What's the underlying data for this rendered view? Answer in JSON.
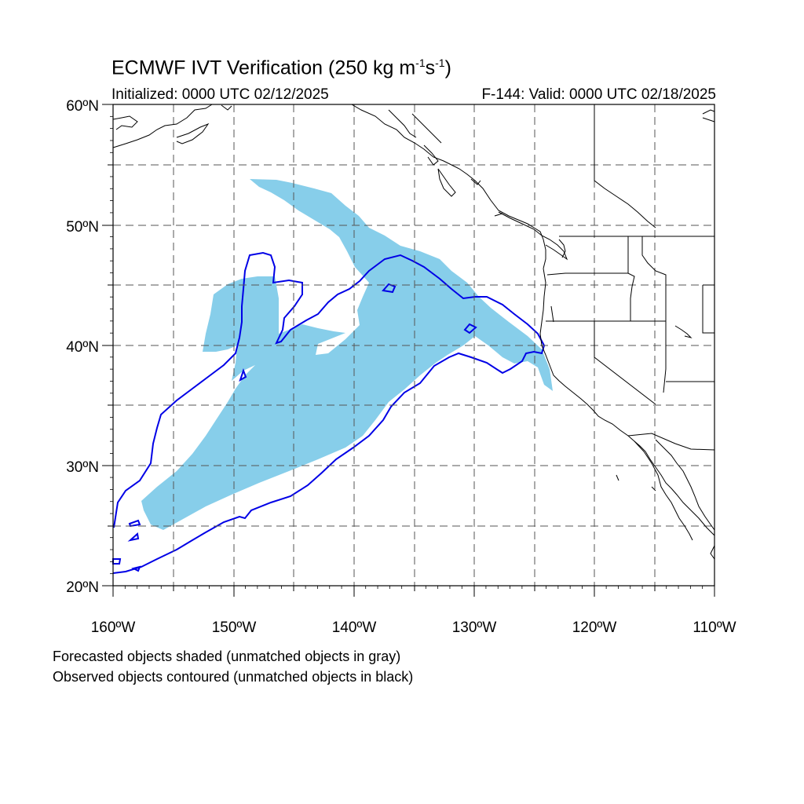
{
  "title": {
    "prefix": "ECMWF IVT Verification (250 kg m",
    "exp1": "-1",
    "mid": "s",
    "exp2": "-1",
    "suffix": ")"
  },
  "subtitle": {
    "initialized": "Initialized: 0000 UTC 02/12/2025",
    "valid": "F-144: Valid: 0000 UTC 02/18/2025"
  },
  "map": {
    "lon_range": [
      -160,
      -110
    ],
    "lat_range": [
      20,
      60
    ],
    "grid": true,
    "forecast_fill_color": "#87ceea",
    "observed_contour_color": "#0000e6"
  },
  "axes": {
    "lat_labels": [
      "20ºN",
      "30ºN",
      "40ºN",
      "50ºN",
      "60ºN"
    ],
    "lon_labels": [
      "160ºW",
      "150ºW",
      "140ºW",
      "130ºW",
      "120ºW",
      "110ºW"
    ]
  },
  "legend": {
    "line1": "Forecasted objects shaded (unmatched objects in gray)",
    "line2": "Observed objects contoured (unmatched objects in black)"
  }
}
